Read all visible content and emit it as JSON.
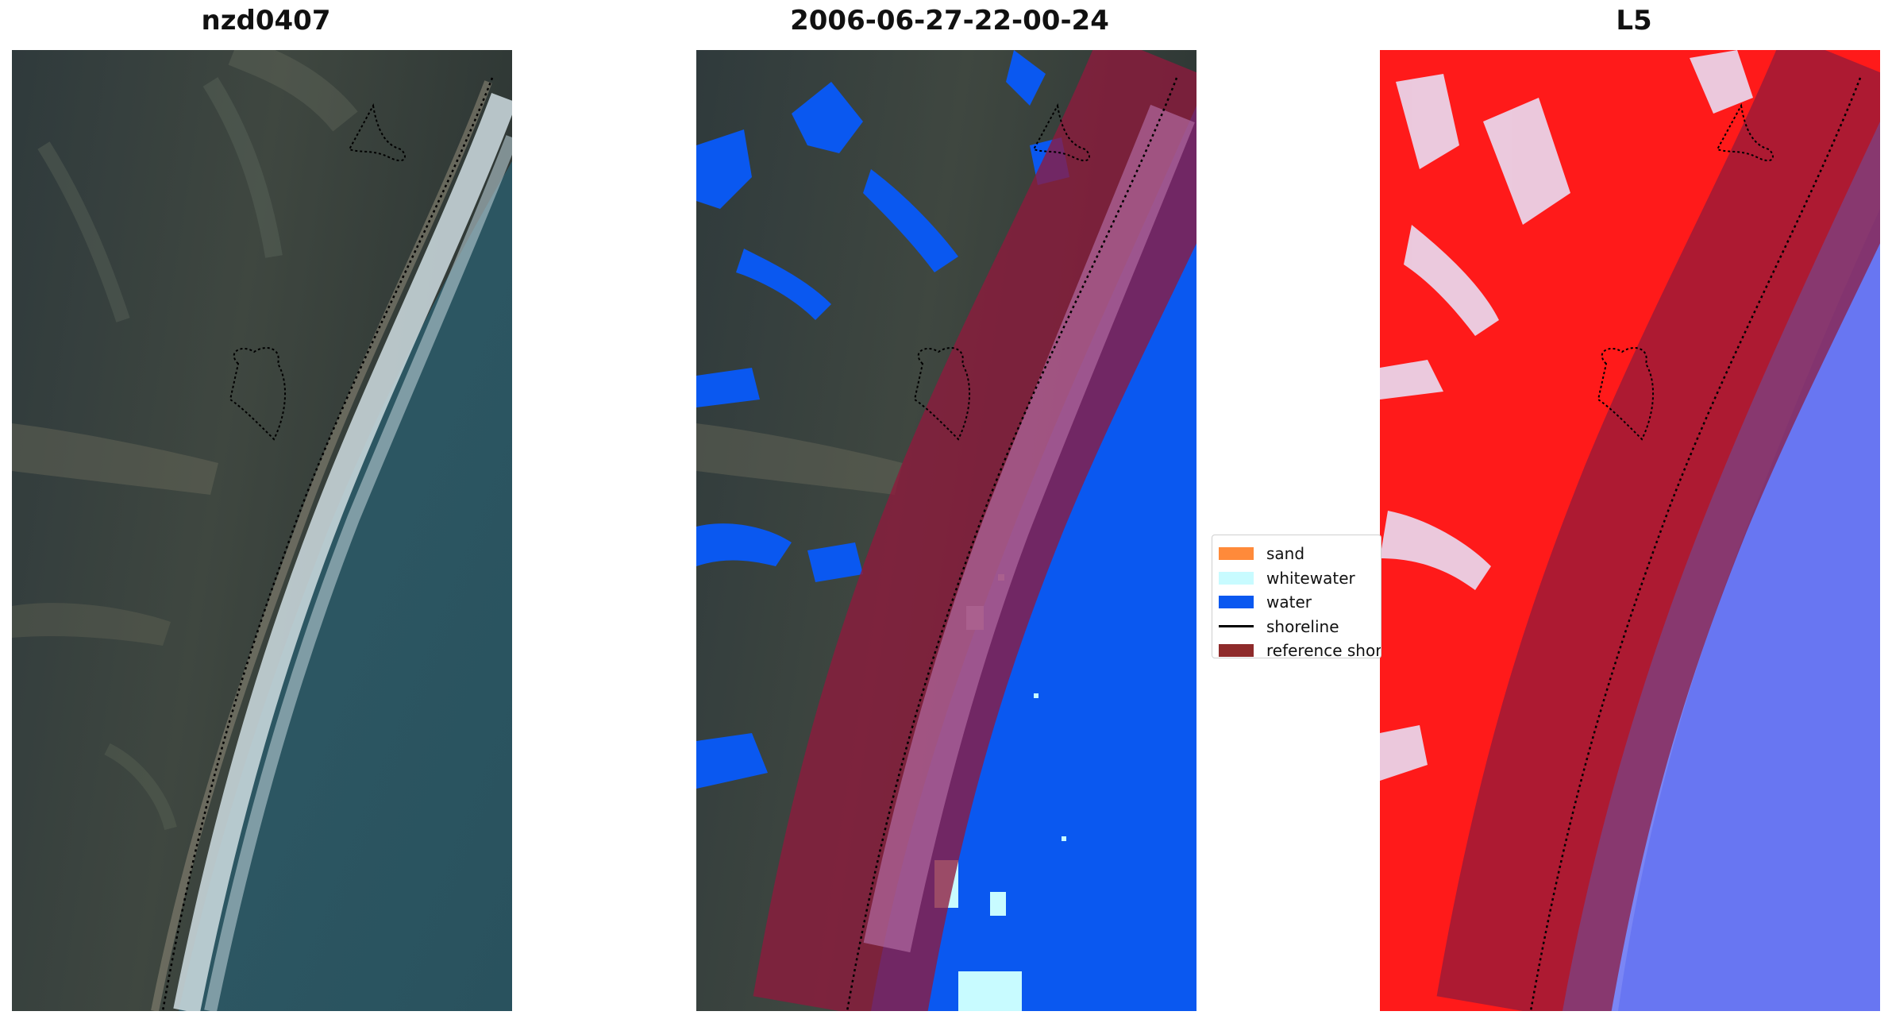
{
  "panels": [
    {
      "title": "nzd0407"
    },
    {
      "title": "2006-06-27-22-00-24"
    },
    {
      "title": "L5"
    }
  ],
  "legend": {
    "items": [
      {
        "label": "sand",
        "color": "#ff8a3a",
        "kind": "patch"
      },
      {
        "label": "whitewater",
        "color": "#c8fbff",
        "kind": "patch"
      },
      {
        "label": "water",
        "color": "#0a58f0",
        "kind": "patch"
      },
      {
        "label": "shoreline",
        "color": "#000000",
        "kind": "line"
      },
      {
        "label": "reference shoreline buffer",
        "color": "#8e2a2a",
        "kind": "patch"
      }
    ]
  },
  "colors": {
    "land_dark": "#3a4340",
    "sea_rgb": "#2d5560",
    "surf": "#d8e4e8",
    "water_class": "#0a58f0",
    "buffer": "#8e1a3c",
    "index_red": "#ff1a1a",
    "index_blue": "#7a86f5"
  }
}
